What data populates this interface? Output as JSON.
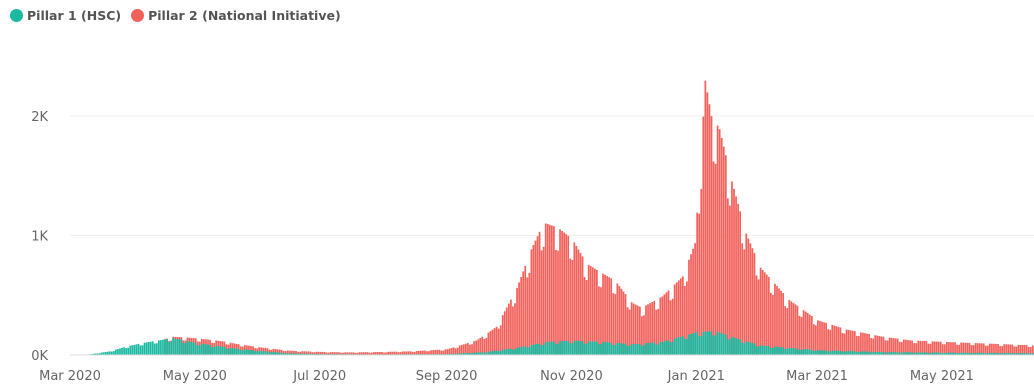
{
  "chart_data": {
    "type": "bar",
    "stacked": true,
    "title": "",
    "xlabel": "",
    "ylabel": "",
    "legend": {
      "position": "top-left",
      "entries": [
        {
          "name": "Pillar 1 (HSC)",
          "color": "#1bb9a2"
        },
        {
          "name": "Pillar 2 (National Initiative)",
          "color": "#f2625d"
        }
      ]
    },
    "grid": true,
    "x_range": [
      "2020-03-01",
      "2021-06-15"
    ],
    "x_ticks": [
      {
        "date": "2020-03-01",
        "label": "Mar 2020"
      },
      {
        "date": "2020-05-01",
        "label": "May 2020"
      },
      {
        "date": "2020-07-01",
        "label": "Jul 2020"
      },
      {
        "date": "2020-09-01",
        "label": "Sep 2020"
      },
      {
        "date": "2020-11-01",
        "label": "Nov 2020"
      },
      {
        "date": "2021-01-01",
        "label": "Jan 2021"
      },
      {
        "date": "2021-03-01",
        "label": "Mar 2021"
      },
      {
        "date": "2021-05-01",
        "label": "May 2021"
      }
    ],
    "y_ticks": [
      {
        "value": 0,
        "label": "0K"
      },
      {
        "value": 1000,
        "label": "1K"
      },
      {
        "value": 2000,
        "label": "2K"
      }
    ],
    "ylim": [
      0,
      2450
    ],
    "series": [
      {
        "name": "Pillar 1 (HSC)",
        "color": "#1bb9a2",
        "points": [
          [
            "2020-03-01",
            0
          ],
          [
            "2020-03-10",
            5
          ],
          [
            "2020-03-20",
            30
          ],
          [
            "2020-03-28",
            70
          ],
          [
            "2020-04-05",
            100
          ],
          [
            "2020-04-12",
            120
          ],
          [
            "2020-04-20",
            140
          ],
          [
            "2020-04-26",
            120
          ],
          [
            "2020-05-01",
            100
          ],
          [
            "2020-05-10",
            80
          ],
          [
            "2020-05-20",
            55
          ],
          [
            "2020-06-01",
            35
          ],
          [
            "2020-06-15",
            15
          ],
          [
            "2020-07-01",
            8
          ],
          [
            "2020-08-01",
            5
          ],
          [
            "2020-09-01",
            8
          ],
          [
            "2020-09-20",
            25
          ],
          [
            "2020-10-05",
            60
          ],
          [
            "2020-10-20",
            110
          ],
          [
            "2020-11-01",
            120
          ],
          [
            "2020-11-15",
            110
          ],
          [
            "2020-12-01",
            90
          ],
          [
            "2020-12-15",
            110
          ],
          [
            "2021-01-01",
            190
          ],
          [
            "2021-01-10",
            200
          ],
          [
            "2021-01-20",
            140
          ],
          [
            "2021-02-01",
            80
          ],
          [
            "2021-03-01",
            40
          ],
          [
            "2021-04-01",
            25
          ],
          [
            "2021-05-01",
            20
          ],
          [
            "2021-06-15",
            15
          ]
        ]
      },
      {
        "name": "Pillar 2 (National Initiative)",
        "color": "#f2625d",
        "points": [
          [
            "2020-03-01",
            0
          ],
          [
            "2020-04-15",
            0
          ],
          [
            "2020-05-01",
            40
          ],
          [
            "2020-05-15",
            45
          ],
          [
            "2020-06-01",
            30
          ],
          [
            "2020-06-20",
            20
          ],
          [
            "2020-07-15",
            15
          ],
          [
            "2020-08-15",
            25
          ],
          [
            "2020-09-01",
            40
          ],
          [
            "2020-09-15",
            100
          ],
          [
            "2020-09-25",
            200
          ],
          [
            "2020-10-05",
            500
          ],
          [
            "2020-10-12",
            800
          ],
          [
            "2020-10-18",
            1000
          ],
          [
            "2020-10-25",
            950
          ],
          [
            "2020-11-01",
            850
          ],
          [
            "2020-11-08",
            650
          ],
          [
            "2020-11-15",
            580
          ],
          [
            "2020-11-22",
            520
          ],
          [
            "2020-11-30",
            350
          ],
          [
            "2020-12-05",
            300
          ],
          [
            "2020-12-15",
            380
          ],
          [
            "2020-12-25",
            500
          ],
          [
            "2020-12-31",
            750
          ],
          [
            "2021-01-03",
            1500
          ],
          [
            "2021-01-05",
            2100
          ],
          [
            "2021-01-08",
            1800
          ],
          [
            "2021-01-12",
            1700
          ],
          [
            "2021-01-18",
            1300
          ],
          [
            "2021-01-25",
            900
          ],
          [
            "2021-02-01",
            650
          ],
          [
            "2021-02-15",
            400
          ],
          [
            "2021-03-01",
            250
          ],
          [
            "2021-03-15",
            180
          ],
          [
            "2021-04-01",
            130
          ],
          [
            "2021-04-15",
            100
          ],
          [
            "2021-05-01",
            90
          ],
          [
            "2021-06-15",
            65
          ]
        ]
      }
    ]
  }
}
